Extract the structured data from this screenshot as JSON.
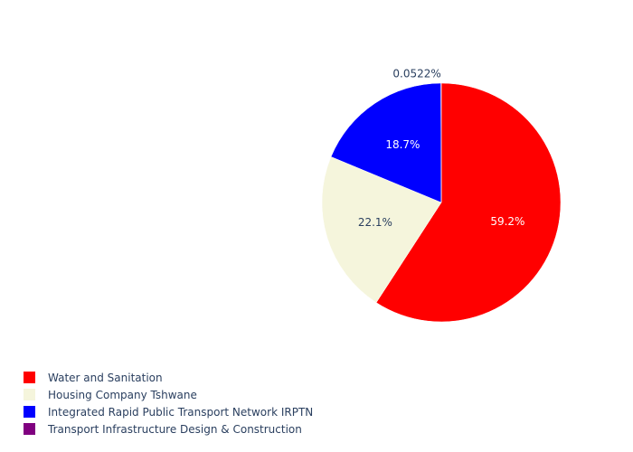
{
  "chart_data": {
    "type": "pie",
    "title": "",
    "categories": [
      "Water and Sanitation",
      "Housing Company Tshwane",
      "Integrated Rapid Public Transport Network IRPTN",
      "Transport Infrastructure Design & Construction"
    ],
    "values": [
      59.2,
      22.1,
      18.7,
      0.0522
    ],
    "labels": [
      "59.2%",
      "22.1%",
      "18.7%",
      "0.0522%"
    ],
    "colors": [
      "#ff0000",
      "#f5f5dc",
      "#0000ff",
      "#800080"
    ],
    "label_colors": [
      "#ffffff",
      "#2a3f5f",
      "#ffffff",
      "#2a3f5f"
    ],
    "direction": "clockwise",
    "legend_position": "bottom-left"
  }
}
